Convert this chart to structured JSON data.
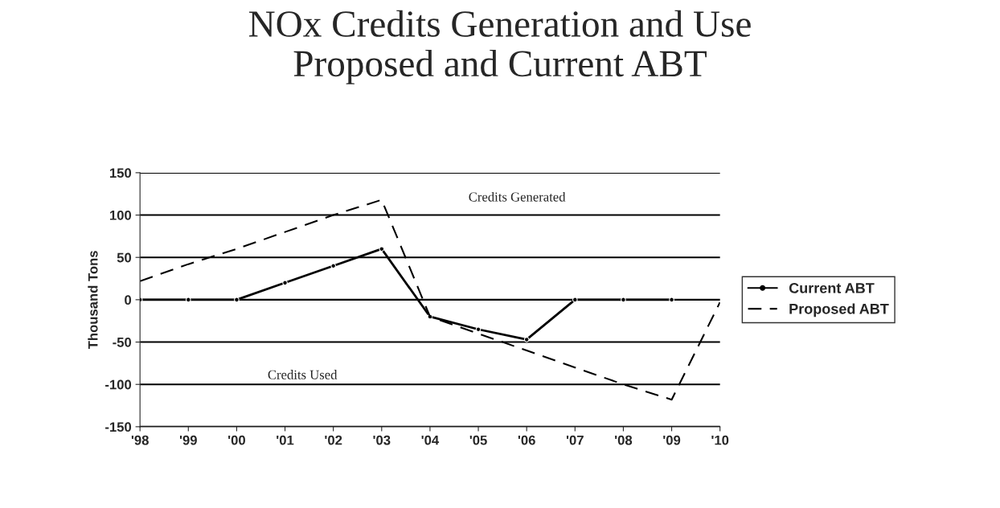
{
  "chart_data": {
    "type": "line",
    "title": "NOx Credits Generation and Use\nProposed and Current ABT",
    "ylabel": "Thousand Tons",
    "categories": [
      "'98",
      "'99",
      "'00",
      "'01",
      "'02",
      "'03",
      "'04",
      "'05",
      "'06",
      "'07",
      "'08",
      "'09",
      "'10"
    ],
    "series": [
      {
        "name": "Current ABT",
        "color": "#000000",
        "marker": "circle",
        "line_style": "solid",
        "values": [
          0,
          0,
          0,
          20,
          40,
          60,
          -20,
          -35,
          -47,
          0,
          0,
          0,
          null
        ]
      },
      {
        "name": "Proposed ABT",
        "color": "#000000",
        "marker": "none",
        "line_style": "dashed",
        "values": [
          22,
          42,
          60,
          80,
          100,
          118,
          -20,
          -40,
          -60,
          -80,
          -100,
          -118,
          -3
        ]
      }
    ],
    "ylim": [
      -150,
      150
    ],
    "yticks": [
      -150,
      -100,
      -50,
      0,
      50,
      100,
      150
    ],
    "grid": "y",
    "legend": "right",
    "annotations": [
      "Credits Generated",
      "Credits Used"
    ]
  }
}
